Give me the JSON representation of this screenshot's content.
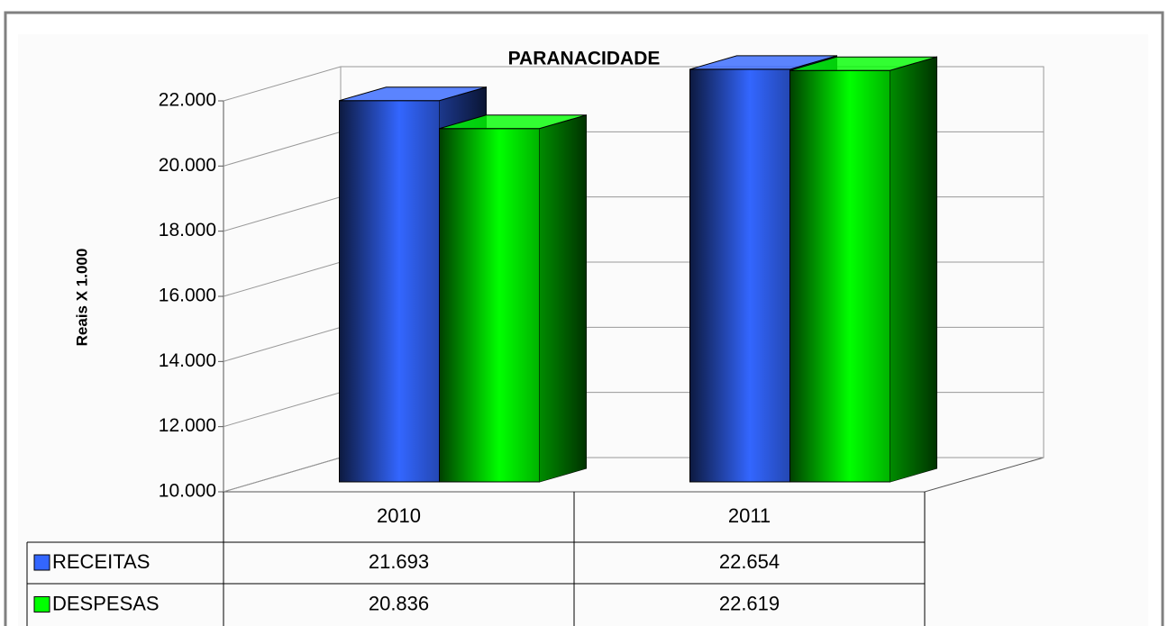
{
  "chart_data": {
    "type": "bar3d",
    "title": "PARANACIDADE",
    "y_label": "Reais X 1.000",
    "categories": [
      "2010",
      "2011"
    ],
    "series": [
      {
        "name": "RECEITAS",
        "color": "#3366ff",
        "values": [
          21693,
          22654
        ],
        "value_labels": [
          "21.693",
          "22.654"
        ]
      },
      {
        "name": "DESPESAS",
        "color": "#00ff00",
        "values": [
          20836,
          22619
        ],
        "value_labels": [
          "20.836",
          "22.619"
        ]
      }
    ],
    "ylim": [
      10000,
      22000
    ],
    "yticks": [
      {
        "value": 10000,
        "label": "10.000"
      },
      {
        "value": 12000,
        "label": "12.000"
      },
      {
        "value": 14000,
        "label": "14.000"
      },
      {
        "value": 16000,
        "label": "16.000"
      },
      {
        "value": 18000,
        "label": "18.000"
      },
      {
        "value": 20000,
        "label": "20.000"
      },
      {
        "value": 22000,
        "label": "22.000"
      }
    ],
    "grid": true
  }
}
